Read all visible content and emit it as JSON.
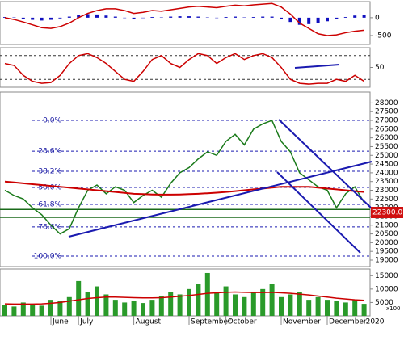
{
  "chart_data": {
    "type": "stock",
    "categories": [
      null,
      null,
      null,
      null,
      null,
      "June",
      null,
      null,
      "July",
      null,
      null,
      null,
      null,
      null,
      "August",
      null,
      null,
      null,
      null,
      null,
      "September",
      null,
      null,
      null,
      "October",
      null,
      null,
      null,
      null,
      null,
      "November",
      null,
      null,
      null,
      null,
      "December",
      null,
      null,
      null,
      "2020"
    ],
    "price": {
      "ylim": [
        18630,
        28620
      ],
      "yticks": [
        19000,
        19500,
        20000,
        20500,
        21000,
        21500,
        22000,
        22500,
        23000,
        23500,
        24000,
        24500,
        25000,
        25500,
        26000,
        26500,
        27000,
        27500,
        28000
      ],
      "series": [
        {
          "name": "Close",
          "color": "#1a7a1a",
          "values": [
            23000,
            22700,
            22500,
            22000,
            21600,
            21000,
            20500,
            20800,
            22000,
            23000,
            23300,
            22800,
            23200,
            23000,
            22300,
            22700,
            23000,
            22600,
            23400,
            24000,
            24300,
            24800,
            25200,
            25000,
            25800,
            26200,
            25600,
            26500,
            26800,
            27000,
            25800,
            25200,
            24000,
            23600,
            23200,
            23000,
            22000,
            22800,
            23200,
            22300
          ]
        },
        {
          "name": "MA",
          "color": "#cc0000",
          "values": [
            23500,
            23450,
            23400,
            23350,
            23300,
            23250,
            23200,
            23150,
            23100,
            23050,
            23000,
            22950,
            22900,
            22850,
            22800,
            22780,
            22760,
            22750,
            22750,
            22760,
            22780,
            22800,
            22830,
            22860,
            22900,
            22950,
            23000,
            23050,
            23100,
            23150,
            23200,
            23200,
            23200,
            23200,
            23150,
            23100,
            23050,
            23000,
            22950,
            22900
          ]
        }
      ],
      "fib_levels": [
        {
          "label": "0.0%",
          "value": 27000
        },
        {
          "label": "23.6%",
          "value": 25240
        },
        {
          "label": "38.2%",
          "value": 24090
        },
        {
          "label": "50.0%",
          "value": 23160
        },
        {
          "label": "61.8%",
          "value": 22190
        },
        {
          "label": "78.6%",
          "value": 20900
        },
        {
          "label": "100.0%",
          "value": 19230
        }
      ],
      "support_levels": [
        21900,
        21450
      ],
      "last_price_label": "22300.0"
    },
    "macd": {
      "ylim": [
        -750,
        450
      ],
      "yticks": [
        -500,
        0
      ],
      "histogram": {
        "color": "#1010c0",
        "values": [
          20,
          10,
          -30,
          -60,
          -80,
          -60,
          -20,
          30,
          80,
          100,
          90,
          60,
          30,
          -10,
          -40,
          -10,
          20,
          10,
          30,
          40,
          40,
          30,
          10,
          -10,
          20,
          30,
          10,
          20,
          30,
          30,
          -40,
          -120,
          -200,
          -180,
          -150,
          -100,
          -40,
          20,
          60,
          80
        ]
      },
      "line": {
        "color": "#cc0000",
        "values": [
          0,
          -50,
          -120,
          -200,
          -280,
          -300,
          -250,
          -150,
          0,
          120,
          200,
          250,
          250,
          200,
          120,
          150,
          200,
          180,
          220,
          260,
          300,
          320,
          300,
          280,
          320,
          350,
          330,
          360,
          380,
          400,
          300,
          100,
          -150,
          -300,
          -450,
          -500,
          -480,
          -420,
          -380,
          -350
        ]
      }
    },
    "stoch": {
      "ylim": [
        0,
        100
      ],
      "yticks": [
        50
      ],
      "levels": [
        20,
        80
      ],
      "color": "#cc0000",
      "values": [
        60,
        55,
        30,
        15,
        10,
        12,
        30,
        60,
        80,
        85,
        75,
        60,
        40,
        20,
        15,
        40,
        70,
        80,
        60,
        50,
        70,
        85,
        80,
        60,
        75,
        85,
        70,
        80,
        85,
        75,
        50,
        20,
        10,
        8,
        10,
        10,
        20,
        15,
        30,
        15
      ]
    },
    "volume": {
      "ylim": [
        0,
        17500
      ],
      "yticks": [
        5000,
        10000,
        15000
      ],
      "unit_label": "x100",
      "color": "#2a9a2a",
      "values": [
        4000,
        3500,
        5000,
        4200,
        3800,
        6000,
        5500,
        7000,
        13000,
        9000,
        11000,
        8000,
        6000,
        5000,
        5500,
        4800,
        6000,
        7500,
        9000,
        8000,
        10000,
        12000,
        16000,
        9000,
        11000,
        8000,
        7000,
        9000,
        10000,
        12000,
        7000,
        8000,
        9000,
        6000,
        7000,
        6000,
        5500,
        5000,
        6000,
        4500
      ],
      "ma": {
        "color": "#cc0000",
        "values": [
          4500,
          4400,
          4400,
          4400,
          4500,
          4700,
          5000,
          5500,
          6000,
          6500,
          6800,
          7000,
          7000,
          6900,
          6800,
          6700,
          6700,
          6800,
          7000,
          7300,
          7600,
          8000,
          8400,
          8600,
          8800,
          8900,
          8800,
          8700,
          8700,
          8800,
          8600,
          8400,
          8100,
          7800,
          7400,
          7000,
          6600,
          6300,
          6000,
          5800
        ]
      }
    }
  }
}
